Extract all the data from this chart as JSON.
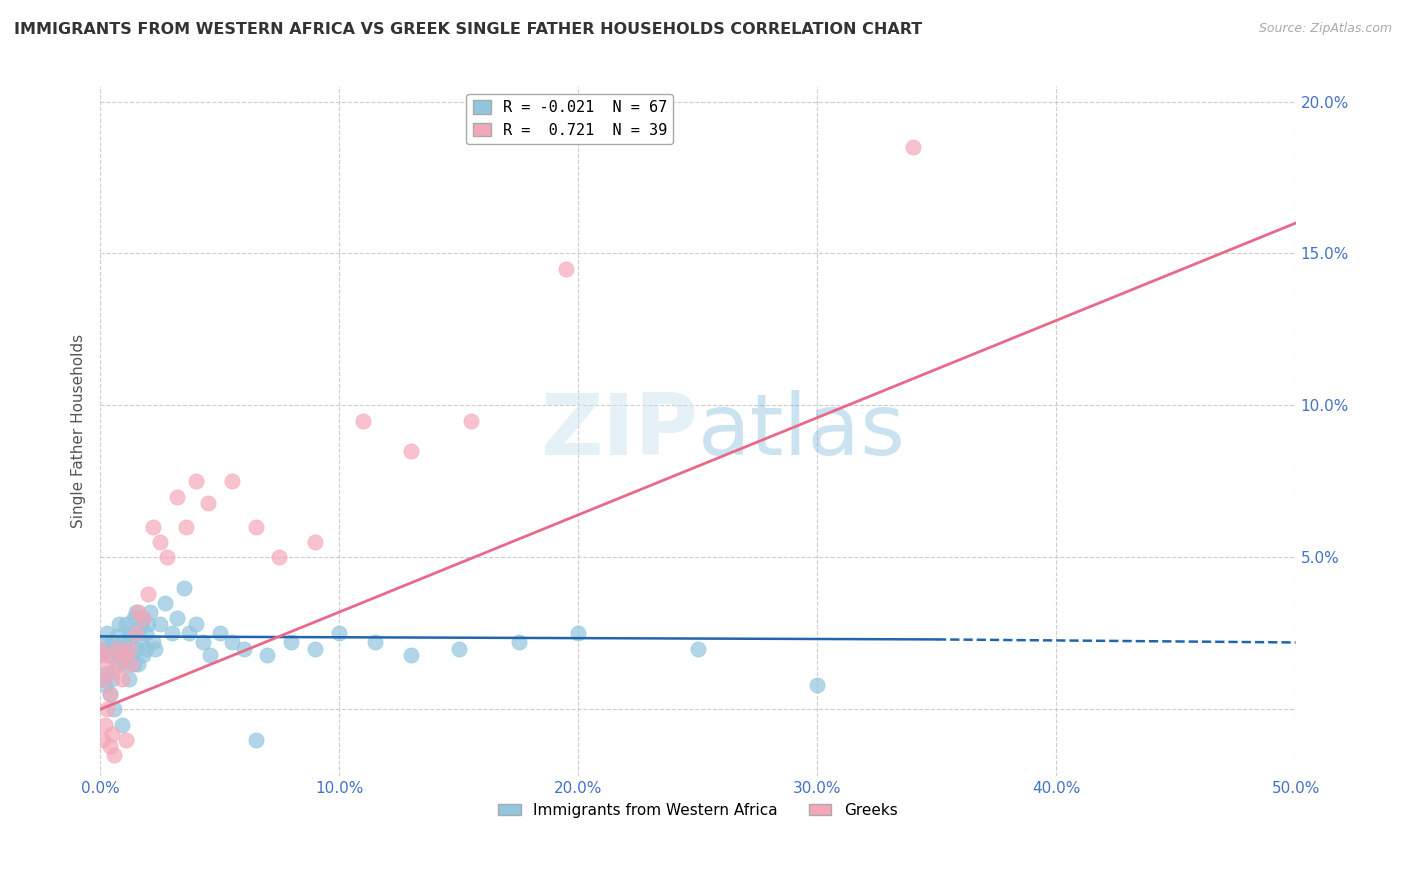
{
  "title": "IMMIGRANTS FROM WESTERN AFRICA VS GREEK SINGLE FATHER HOUSEHOLDS CORRELATION CHART",
  "source": "Source: ZipAtlas.com",
  "ylabel": "Single Father Households",
  "xmin": 0.0,
  "xmax": 0.5,
  "ymin": -0.022,
  "ymax": 0.205,
  "yticks": [
    0.0,
    0.05,
    0.1,
    0.15,
    0.2
  ],
  "ytick_labels": [
    "",
    "5.0%",
    "10.0%",
    "15.0%",
    "20.0%"
  ],
  "xticks": [
    0.0,
    0.1,
    0.2,
    0.3,
    0.4,
    0.5
  ],
  "xtick_labels": [
    "0.0%",
    "10.0%",
    "20.0%",
    "30.0%",
    "40.0%",
    "50.0%"
  ],
  "legend_label1": "R = -0.021  N = 67",
  "legend_label2": "R =  0.721  N = 39",
  "legend_cat1": "Immigrants from Western Africa",
  "legend_cat2": "Greeks",
  "color_blue": "#92c5de",
  "color_pink": "#f4a7b9",
  "trendline_blue": "#2166ac",
  "trendline_pink": "#e8698a",
  "blue_trendline_start_y": 0.024,
  "blue_trendline_end_y": 0.022,
  "pink_trendline_start_y": 0.0,
  "pink_trendline_end_y": 0.16,
  "blue_scatter_x": [
    0.0,
    0.001,
    0.001,
    0.002,
    0.002,
    0.003,
    0.003,
    0.004,
    0.004,
    0.005,
    0.005,
    0.006,
    0.006,
    0.007,
    0.007,
    0.008,
    0.008,
    0.009,
    0.009,
    0.01,
    0.01,
    0.011,
    0.011,
    0.012,
    0.012,
    0.013,
    0.013,
    0.014,
    0.014,
    0.015,
    0.015,
    0.016,
    0.016,
    0.017,
    0.017,
    0.018,
    0.018,
    0.019,
    0.019,
    0.02,
    0.021,
    0.022,
    0.023,
    0.025,
    0.027,
    0.03,
    0.032,
    0.035,
    0.037,
    0.04,
    0.043,
    0.046,
    0.05,
    0.055,
    0.06,
    0.065,
    0.07,
    0.08,
    0.09,
    0.1,
    0.115,
    0.13,
    0.15,
    0.175,
    0.2,
    0.25,
    0.3
  ],
  "blue_scatter_y": [
    0.018,
    0.02,
    0.01,
    0.022,
    0.008,
    0.025,
    0.012,
    0.018,
    0.005,
    0.022,
    0.01,
    0.02,
    0.0,
    0.024,
    0.015,
    0.028,
    0.018,
    0.02,
    -0.005,
    0.022,
    0.015,
    0.028,
    0.02,
    0.025,
    0.01,
    0.024,
    0.018,
    0.03,
    0.015,
    0.032,
    0.02,
    0.025,
    0.015,
    0.028,
    0.022,
    0.03,
    0.018,
    0.025,
    0.02,
    0.028,
    0.032,
    0.022,
    0.02,
    0.028,
    0.035,
    0.025,
    0.03,
    0.04,
    0.025,
    0.028,
    0.022,
    0.018,
    0.025,
    0.022,
    0.02,
    -0.01,
    0.018,
    0.022,
    0.02,
    0.025,
    0.022,
    0.018,
    0.02,
    0.022,
    0.025,
    0.02,
    0.008
  ],
  "pink_scatter_x": [
    0.0,
    0.001,
    0.001,
    0.002,
    0.002,
    0.003,
    0.003,
    0.004,
    0.004,
    0.005,
    0.005,
    0.006,
    0.007,
    0.008,
    0.009,
    0.01,
    0.011,
    0.012,
    0.013,
    0.015,
    0.016,
    0.018,
    0.02,
    0.022,
    0.025,
    0.028,
    0.032,
    0.036,
    0.04,
    0.045,
    0.055,
    0.065,
    0.075,
    0.09,
    0.11,
    0.13,
    0.155,
    0.195,
    0.34
  ],
  "pink_scatter_y": [
    0.02,
    -0.01,
    0.01,
    -0.005,
    0.015,
    0.0,
    0.018,
    -0.012,
    0.005,
    -0.008,
    0.012,
    -0.015,
    0.02,
    0.015,
    0.01,
    0.018,
    -0.01,
    0.02,
    0.015,
    0.025,
    0.032,
    0.03,
    0.038,
    0.06,
    0.055,
    0.05,
    0.07,
    0.06,
    0.075,
    0.068,
    0.075,
    0.06,
    0.05,
    0.055,
    0.095,
    0.085,
    0.095,
    0.145,
    0.185
  ]
}
